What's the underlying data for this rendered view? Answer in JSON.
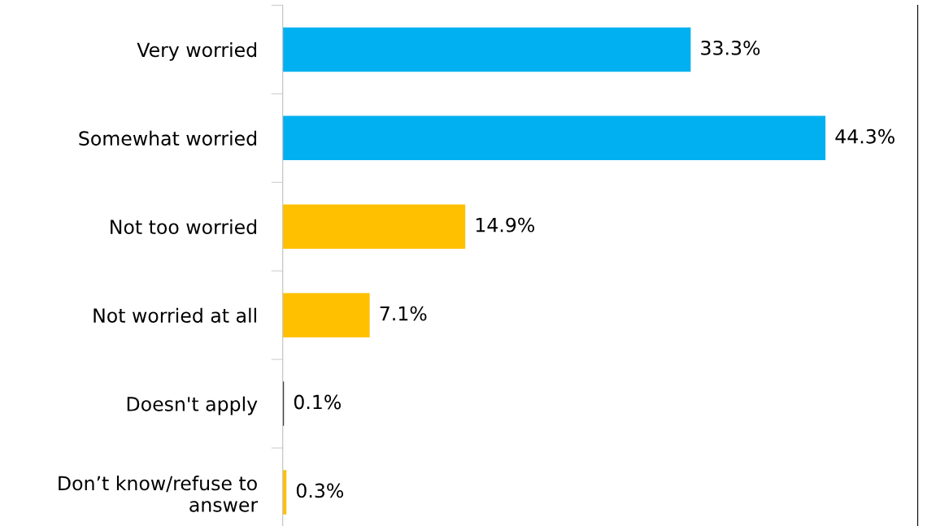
{
  "chart_data": {
    "type": "bar",
    "orientation": "horizontal",
    "categories": [
      "Very worried",
      "Somewhat worried",
      "Not too worried",
      "Not worried at all",
      "Doesn't apply",
      "Don’t know/refuse to\nanswer"
    ],
    "values": [
      33.3,
      44.3,
      14.9,
      7.1,
      0.1,
      0.3
    ],
    "colors": [
      "#00b0f0",
      "#00b0f0",
      "#ffc000",
      "#ffc000",
      "#1a1a1a",
      "#ffc000"
    ],
    "value_labels": [
      "33.3%",
      "44.3%",
      "14.9%",
      "7.1%",
      "0.1%",
      "0.3%"
    ],
    "grid": false,
    "legend": false
  }
}
